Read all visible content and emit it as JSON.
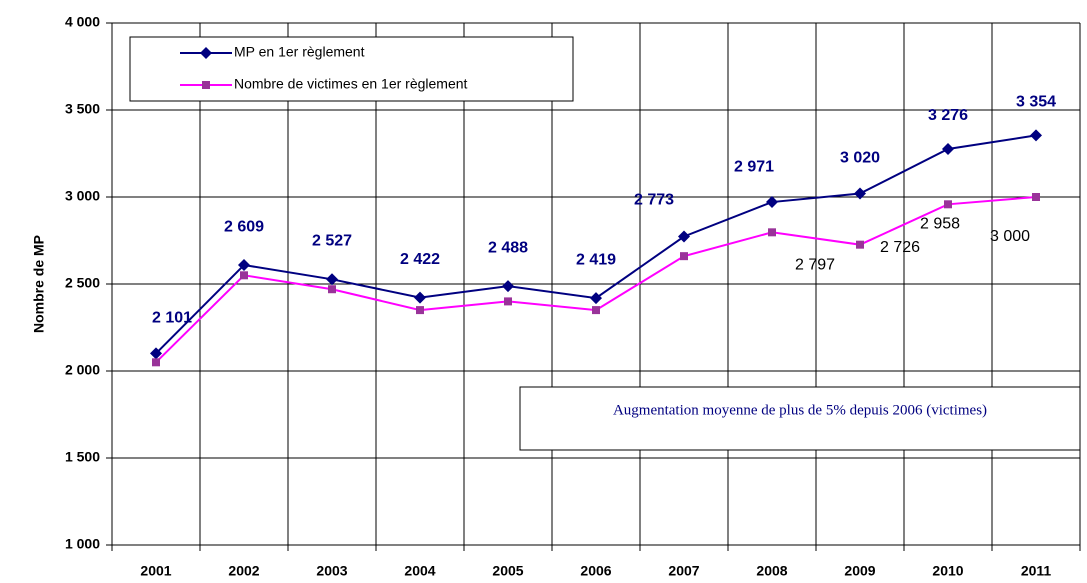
{
  "chart_data": {
    "type": "line",
    "y_label": "Nombre de MP",
    "annotation": "Augmentation moyenne de plus de 5% depuis 2006 (victimes)",
    "categories": [
      "2001",
      "2002",
      "2003",
      "2004",
      "2005",
      "2006",
      "2007",
      "2008",
      "2009",
      "2010",
      "2011"
    ],
    "series": [
      {
        "name": "MP en 1er règlement",
        "color": "#000080",
        "marker": "diamond",
        "marker_color": "#000080",
        "values": [
          2101,
          2609,
          2527,
          2422,
          2488,
          2419,
          2773,
          2971,
          3020,
          3276,
          3354
        ],
        "value_labels": [
          "2 101",
          "2 609",
          "2 527",
          "2 422",
          "2 488",
          "2 419",
          "2 773",
          "2 971",
          "3 020",
          "3 276",
          "3 354"
        ]
      },
      {
        "name": "Nombre de victimes en 1er règlement",
        "color": "#ff00ff",
        "marker": "square",
        "marker_color": "#993399",
        "values": [
          2050,
          2550,
          2470,
          2350,
          2400,
          2350,
          2660,
          2797,
          2726,
          2958,
          3000
        ],
        "value_labels": [
          null,
          null,
          null,
          null,
          null,
          null,
          null,
          "2 797",
          "2 726",
          "2 958",
          "3 000"
        ]
      }
    ],
    "ylim": [
      1000,
      4000
    ],
    "yticks": [
      {
        "value": 1000,
        "label": "1 000"
      },
      {
        "value": 1500,
        "label": "1 500"
      },
      {
        "value": 2000,
        "label": "2 000"
      },
      {
        "value": 2500,
        "label": "2 500"
      },
      {
        "value": 3000,
        "label": "3 000"
      },
      {
        "value": 3500,
        "label": "3 500"
      },
      {
        "value": 4000,
        "label": "4 000"
      }
    ],
    "grid": true
  }
}
